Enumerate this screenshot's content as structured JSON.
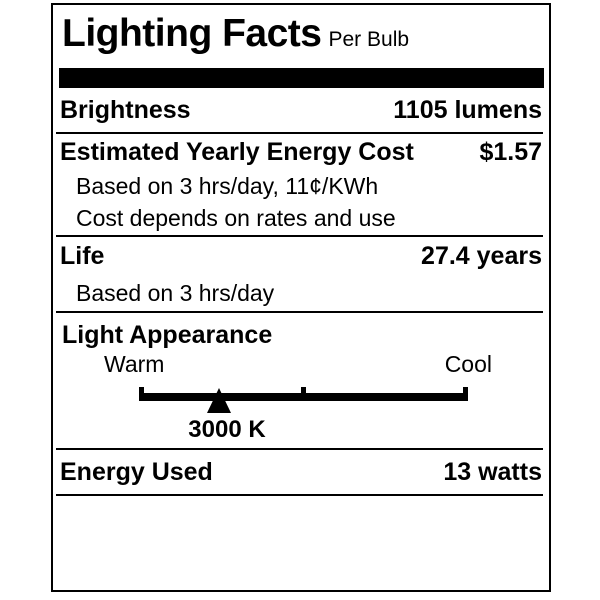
{
  "colors": {
    "ink": "#000000",
    "background": "#ffffff"
  },
  "label": {
    "title": "Lighting Facts",
    "per_unit": "Per Bulb",
    "brightness": {
      "name": "Brightness",
      "value": "1105 lumens"
    },
    "energy_cost": {
      "name": "Estimated Yearly Energy Cost",
      "value": "$1.57",
      "note1": "Based on 3 hrs/day, 11¢/KWh",
      "note2": "Cost depends on rates and use"
    },
    "life": {
      "name": "Life",
      "value": "27.4 years",
      "note": "Based on 3 hrs/day"
    },
    "light_appearance": {
      "name": "Light Appearance",
      "warm_label": "Warm",
      "cool_label": "Cool",
      "marker_value": "3000 K"
    },
    "energy_used": {
      "name": "Energy Used",
      "value": "13 watts"
    }
  }
}
